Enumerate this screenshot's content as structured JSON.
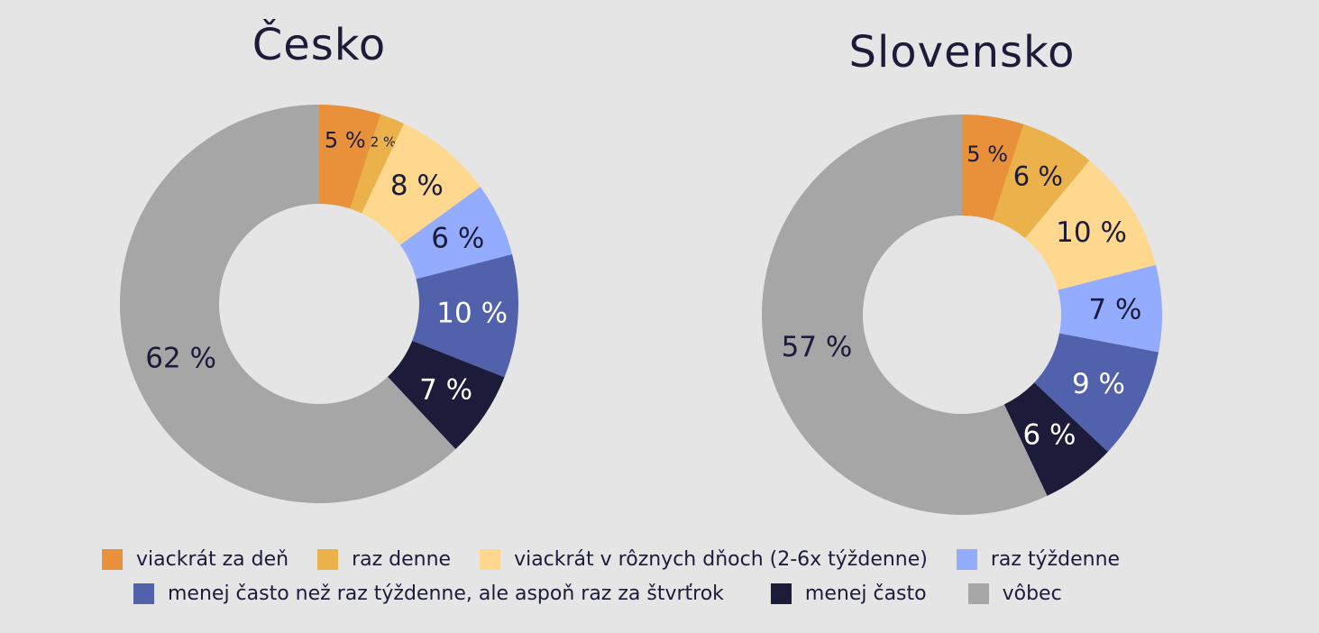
{
  "colors": {
    "viackrat_za_den": "#e8913a",
    "raz_denne": "#ebb14b",
    "viackrat_v_roznych_dnoch": "#fed88e",
    "raz_tyzdenne": "#94acfe",
    "menej_casto_nez_raz_tyzdenne": "#5161ac",
    "menej_casto": "#1c1c3a",
    "vobec": "#a6a6a6"
  },
  "legend": [
    {
      "label": "viackrát za deň",
      "color": "#e8913a"
    },
    {
      "label": "raz denne",
      "color": "#ebb14b"
    },
    {
      "label": "viackrát v rôznych dňoch (2-6x týždenne)",
      "color": "#fed88e"
    },
    {
      "label": "raz týždenne",
      "color": "#94acfe"
    },
    {
      "label": "menej často než raz týždenne, ale aspoň raz za štvrťrok",
      "color": "#5161ac"
    },
    {
      "label": "menej často",
      "color": "#1c1c3a"
    },
    {
      "label": "vôbec",
      "color": "#a6a6a6"
    }
  ],
  "chart_data": [
    {
      "type": "pie",
      "title": "Česko",
      "categories": [
        "viackrát za deň",
        "raz denne",
        "viackrát v rôznych dňoch (2-6x týždenne)",
        "raz týždenne",
        "menej často než raz týždenne, ale aspoň raz za štvrťrok",
        "menej často",
        "vôbec"
      ],
      "values": [
        5,
        2,
        8,
        6,
        10,
        7,
        62
      ],
      "data_labels": [
        "5 %",
        "2 %",
        "8 %",
        "6 %",
        "10 %",
        "7 %",
        "62 %"
      ],
      "label_colors": [
        "#1c1c3a",
        "#1c1c3a",
        "#1c1c3a",
        "#1c1c3a",
        "#ffffff",
        "#ffffff",
        "#1c1c3a"
      ]
    },
    {
      "type": "pie",
      "title": "Slovensko",
      "categories": [
        "viackrát za deň",
        "raz denne",
        "viackrát v rôznych dňoch (2-6x týždenne)",
        "raz týždenne",
        "menej často než raz týždenne, ale aspoň raz za štvrťrok",
        "menej často",
        "vôbec"
      ],
      "values": [
        5,
        6,
        10,
        7,
        9,
        6,
        57
      ],
      "data_labels": [
        "5 %",
        "6 %",
        "10 %",
        "7 %",
        "9 %",
        "6 %",
        "57 %"
      ],
      "label_colors": [
        "#1c1c3a",
        "#1c1c3a",
        "#1c1c3a",
        "#1c1c3a",
        "#ffffff",
        "#ffffff",
        "#1c1c3a"
      ]
    }
  ]
}
